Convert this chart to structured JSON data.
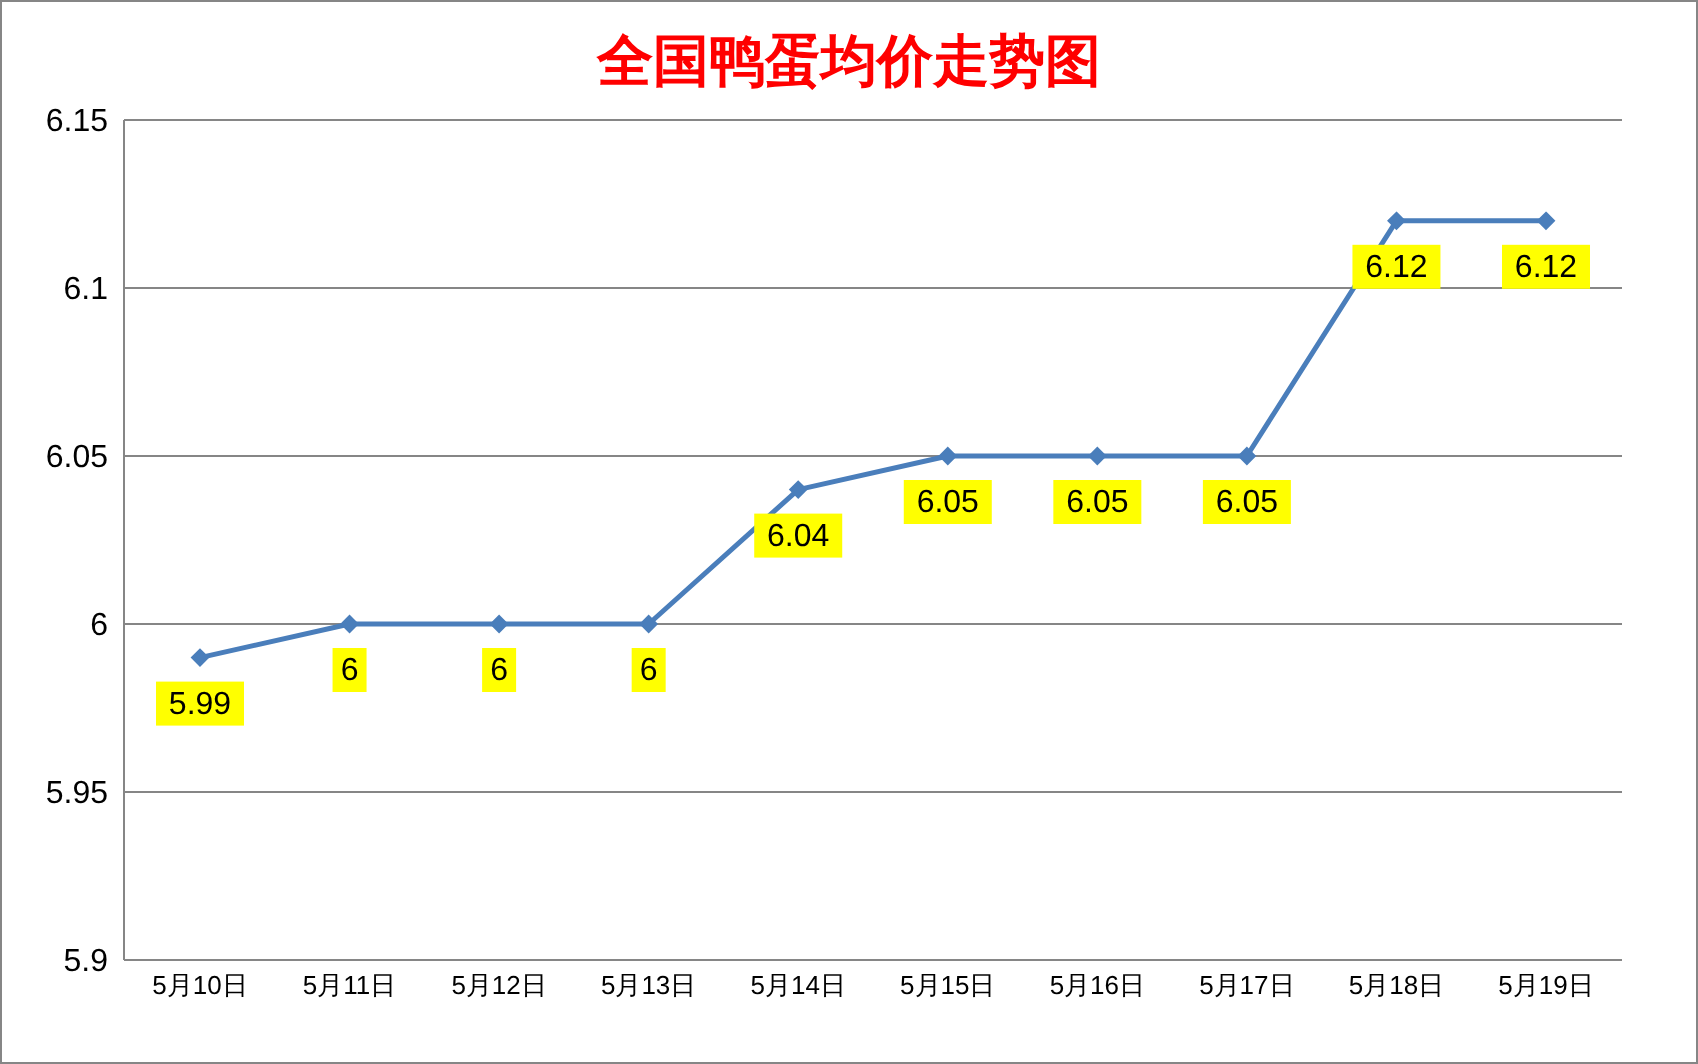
{
  "chart_data": {
    "type": "line",
    "title": "全国鸭蛋均价走势图",
    "categories": [
      "5月10日",
      "5月11日",
      "5月12日",
      "5月13日",
      "5月14日",
      "5月15日",
      "5月16日",
      "5月17日",
      "5月18日",
      "5月19日"
    ],
    "series": [
      {
        "color": "#4a7ebb",
        "values": [
          5.99,
          6,
          6,
          6,
          6.04,
          6.05,
          6.05,
          6.05,
          6.12,
          6.12
        ]
      }
    ],
    "ylim": [
      5.9,
      6.15
    ],
    "yticks": [
      5.9,
      5.95,
      6,
      6.05,
      6.1,
      6.15
    ],
    "grid": "y",
    "legend": false,
    "marker": "diamond",
    "line_style": "solid",
    "data_labels": true
  }
}
